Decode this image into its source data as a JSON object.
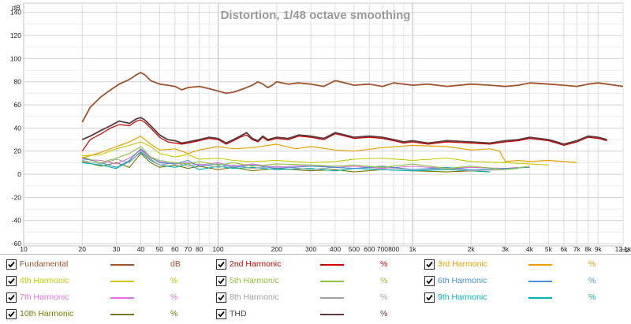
{
  "chart_data": {
    "type": "line",
    "title": "Distortion, 1/48 octave smoothing",
    "x_unit_label": "Hz",
    "y_unit_label": "dB",
    "x_scale": "log",
    "xlim": [
      10,
      12100
    ],
    "ylim": [
      -62,
      148
    ],
    "grid": true,
    "legend_placement": "bottom",
    "x_ticks": [
      {
        "v": 10,
        "label": "10"
      },
      {
        "v": 20,
        "label": "20"
      },
      {
        "v": 30,
        "label": "30"
      },
      {
        "v": 40,
        "label": "40"
      },
      {
        "v": 50,
        "label": "50"
      },
      {
        "v": 60,
        "label": "60"
      },
      {
        "v": 70,
        "label": "70"
      },
      {
        "v": 80,
        "label": "80"
      },
      {
        "v": 100,
        "label": "100"
      },
      {
        "v": 200,
        "label": "200"
      },
      {
        "v": 300,
        "label": "300"
      },
      {
        "v": 400,
        "label": "400"
      },
      {
        "v": 500,
        "label": "500"
      },
      {
        "v": 600,
        "label": "600"
      },
      {
        "v": 700,
        "label": "700"
      },
      {
        "v": 800,
        "label": "800"
      },
      {
        "v": 1000,
        "label": "1k"
      },
      {
        "v": 2000,
        "label": "2k"
      },
      {
        "v": 3000,
        "label": "3k"
      },
      {
        "v": 4000,
        "label": "4k"
      },
      {
        "v": 5000,
        "label": "5k"
      },
      {
        "v": 6000,
        "label": "6k"
      },
      {
        "v": 7000,
        "label": "7k"
      },
      {
        "v": 8000,
        "label": "8k"
      },
      {
        "v": 9000,
        "label": "9k"
      },
      {
        "v": 12100,
        "label": "12.1k"
      }
    ],
    "y_ticks": [
      {
        "v": 140,
        "label": "140"
      },
      {
        "v": 120,
        "label": "120"
      },
      {
        "v": 100,
        "label": "100"
      },
      {
        "v": 80,
        "label": "80"
      },
      {
        "v": 60,
        "label": "60"
      },
      {
        "v": 40,
        "label": "40"
      },
      {
        "v": 20,
        "label": "20"
      },
      {
        "v": 0,
        "label": "0"
      },
      {
        "v": -20,
        "label": "-20"
      },
      {
        "v": -40,
        "label": "-40"
      },
      {
        "v": -60,
        "label": "-60"
      }
    ],
    "series": [
      {
        "name": "Fundamental",
        "unit": "dB",
        "color": "#a0522d",
        "width": 1.8,
        "x": [
          20,
          22,
          25,
          28,
          31,
          35,
          38,
          40,
          42,
          45,
          50,
          55,
          60,
          65,
          70,
          80,
          90,
          100,
          110,
          120,
          130,
          140,
          150,
          160,
          170,
          180,
          190,
          200,
          230,
          260,
          300,
          350,
          400,
          450,
          500,
          600,
          700,
          800,
          900,
          1000,
          1200,
          1500,
          2000,
          2500,
          3000,
          3500,
          4000,
          5000,
          6000,
          7000,
          8000,
          9000,
          10000,
          12100
        ],
        "y": [
          45,
          58,
          67,
          73,
          78,
          82,
          86,
          88,
          86,
          81,
          78,
          77,
          76,
          73,
          75,
          76,
          74,
          72,
          70,
          71,
          73,
          75,
          77,
          80,
          78,
          75,
          77,
          80,
          78,
          79,
          78,
          76,
          81,
          79,
          77,
          78,
          76,
          79,
          78,
          77,
          78,
          76,
          78,
          77,
          76,
          77,
          79,
          78,
          77,
          76,
          78,
          79,
          78,
          76
        ]
      },
      {
        "name": "THD",
        "unit": "%",
        "color": "#5a3a3a",
        "width": 1.8,
        "x": [
          20,
          22,
          25,
          28,
          31,
          35,
          38,
          40,
          42,
          45,
          50,
          55,
          60,
          65,
          70,
          80,
          90,
          100,
          110,
          120,
          130,
          140,
          150,
          160,
          170,
          180,
          190,
          200,
          230,
          260,
          300,
          350,
          400,
          450,
          500,
          600,
          700,
          800,
          900,
          1000,
          1200,
          1500,
          2000,
          2500,
          3000,
          3500,
          4000,
          5000,
          5500,
          6000,
          7000,
          8000,
          9000,
          10000
        ],
        "y": [
          30,
          33,
          38,
          42,
          46,
          44,
          48,
          49,
          47,
          42,
          34,
          30,
          29,
          27,
          28,
          30,
          32,
          31,
          27,
          30,
          33,
          36,
          31,
          29,
          33,
          30,
          31,
          32,
          31,
          34,
          33,
          31,
          36,
          34,
          32,
          33,
          32,
          30,
          28,
          29,
          27,
          29,
          28,
          27,
          29,
          30,
          32,
          30,
          28,
          26,
          29,
          33,
          32,
          30
        ]
      },
      {
        "name": "2nd Harmonic",
        "unit": "%",
        "color": "#cc0000",
        "width": 1.2,
        "x": [
          20,
          22,
          25,
          28,
          31,
          35,
          38,
          40,
          42,
          45,
          50,
          55,
          60,
          65,
          70,
          80,
          90,
          100,
          110,
          120,
          130,
          140,
          150,
          160,
          170,
          180,
          190,
          200,
          230,
          260,
          300,
          350,
          400,
          450,
          500,
          600,
          700,
          800,
          900,
          1000,
          1200,
          1500,
          2000,
          2500,
          3000,
          3500,
          4000,
          5000,
          5500,
          6000,
          7000,
          8000,
          9000,
          10000
        ],
        "y": [
          20,
          30,
          35,
          40,
          43,
          42,
          46,
          47,
          45,
          40,
          32,
          28,
          27,
          26,
          27,
          29,
          31,
          30,
          26,
          29,
          32,
          34,
          30,
          28,
          32,
          29,
          30,
          31,
          30,
          33,
          32,
          30,
          35,
          33,
          31,
          32,
          31,
          29,
          27,
          28,
          26,
          28,
          27,
          26,
          28,
          29,
          31,
          29,
          27,
          25,
          28,
          32,
          31,
          29
        ]
      },
      {
        "name": "3rd Harmonic",
        "unit": "%",
        "color": "#e8a000",
        "width": 1.2,
        "x": [
          20,
          25,
          30,
          35,
          40,
          45,
          50,
          60,
          70,
          80,
          100,
          120,
          150,
          200,
          250,
          300,
          400,
          500,
          700,
          1000,
          1500,
          2000,
          2500,
          2800,
          3000,
          3500,
          4000,
          5000,
          6000,
          7000
        ],
        "y": [
          14,
          19,
          24,
          28,
          33,
          26,
          21,
          22,
          18,
          21,
          24,
          22,
          23,
          26,
          22,
          24,
          21,
          20,
          23,
          25,
          24,
          21,
          22,
          20,
          11,
          12,
          11,
          12,
          11,
          10
        ]
      },
      {
        "name": "4th Harmonic",
        "unit": "%",
        "color": "#c8c800",
        "width": 1.1,
        "x": [
          20,
          25,
          30,
          35,
          40,
          45,
          50,
          60,
          70,
          80,
          100,
          120,
          150,
          200,
          300,
          400,
          500,
          700,
          1000,
          1500,
          2000,
          3000,
          4000,
          5000
        ],
        "y": [
          16,
          17,
          22,
          25,
          28,
          24,
          18,
          15,
          17,
          13,
          14,
          12,
          11,
          12,
          10,
          11,
          13,
          14,
          12,
          14,
          11,
          10,
          9,
          8
        ]
      },
      {
        "name": "5th Harmonic",
        "unit": "%",
        "color": "#8fc43a",
        "width": 1.1,
        "x": [
          20,
          25,
          30,
          35,
          40,
          45,
          50,
          60,
          70,
          80,
          100,
          120,
          150,
          200,
          300,
          400,
          500,
          700,
          1000,
          1500,
          2000,
          3000,
          4000
        ],
        "y": [
          15,
          10,
          14,
          18,
          24,
          15,
          12,
          10,
          9,
          11,
          8,
          10,
          7,
          9,
          8,
          7,
          8,
          6,
          9,
          5,
          7,
          4,
          7
        ]
      },
      {
        "name": "6th Harmonic",
        "unit": "%",
        "color": "#4a90d9",
        "width": 1.1,
        "x": [
          20,
          25,
          30,
          35,
          40,
          45,
          50,
          60,
          70,
          80,
          100,
          120,
          150,
          200,
          300,
          400,
          500,
          700,
          1000,
          1500,
          2000,
          3000,
          4000
        ],
        "y": [
          14,
          10,
          6,
          12,
          22,
          15,
          10,
          9,
          12,
          7,
          9,
          6,
          8,
          5,
          7,
          6,
          5,
          7,
          4,
          6,
          4,
          5,
          6
        ]
      },
      {
        "name": "7th Harmonic",
        "unit": "%",
        "color": "#e070e0",
        "width": 1.1,
        "x": [
          20,
          25,
          30,
          35,
          40,
          45,
          50,
          60,
          70,
          80,
          100,
          120,
          150,
          200,
          300,
          400,
          500,
          700,
          1000,
          1500,
          2000,
          3000,
          3500
        ],
        "y": [
          13,
          12,
          9,
          14,
          21,
          14,
          11,
          9,
          10,
          8,
          10,
          7,
          9,
          6,
          8,
          6,
          7,
          5,
          7,
          5,
          6,
          5,
          6
        ]
      },
      {
        "name": "8th Harmonic",
        "unit": "%",
        "color": "#a0a0a0",
        "width": 1.1,
        "x": [
          20,
          25,
          30,
          35,
          40,
          45,
          50,
          60,
          70,
          80,
          100,
          120,
          150,
          200,
          300,
          400,
          500,
          700,
          1000,
          1500,
          2000,
          3000,
          3500
        ],
        "y": [
          12,
          9,
          13,
          10,
          20,
          13,
          8,
          10,
          7,
          9,
          6,
          8,
          5,
          7,
          4,
          6,
          5,
          6,
          4,
          5,
          3,
          4,
          5
        ]
      },
      {
        "name": "9th Harmonic",
        "unit": "%",
        "color": "#00b3b3",
        "width": 1.1,
        "x": [
          20,
          25,
          30,
          35,
          40,
          45,
          50,
          60,
          70,
          80,
          100,
          120,
          150,
          200,
          300,
          400,
          500,
          700,
          1000,
          1500,
          2000,
          2500
        ],
        "y": [
          10,
          8,
          5,
          11,
          19,
          12,
          8,
          6,
          9,
          4,
          7,
          5,
          6,
          4,
          5,
          3,
          5,
          4,
          3,
          4,
          3,
          2
        ]
      },
      {
        "name": "10th Harmonic",
        "unit": "%",
        "color": "#7a7a00",
        "width": 1.1,
        "x": [
          20,
          25,
          30,
          35,
          40,
          45,
          50,
          60,
          70,
          80,
          100,
          120,
          150,
          200,
          300,
          400,
          500,
          700,
          1000,
          1500,
          2000,
          2500
        ],
        "y": [
          11,
          7,
          10,
          6,
          18,
          10,
          6,
          8,
          5,
          7,
          4,
          6,
          3,
          5,
          3,
          4,
          2,
          4,
          3,
          2,
          3,
          2
        ]
      }
    ]
  },
  "legend": {
    "rows": [
      [
        {
          "label": "Fundamental",
          "unit": "dB",
          "color": "#a0522d",
          "checked": true
        },
        {
          "label": "2nd Harmonic",
          "unit": "%",
          "color": "#cc0000",
          "checked": true
        },
        {
          "label": "3rd Harmonic",
          "unit": "%",
          "color": "#e8a000",
          "checked": true
        }
      ],
      [
        {
          "label": "4th Harmonic",
          "unit": "%",
          "color": "#c8c800",
          "checked": true
        },
        {
          "label": "5th Harmonic",
          "unit": "%",
          "color": "#8fc43a",
          "checked": true
        },
        {
          "label": "6th Harmonic",
          "unit": "%",
          "color": "#4a90d9",
          "checked": true
        }
      ],
      [
        {
          "label": "7th Harmonic",
          "unit": "%",
          "color": "#e070e0",
          "checked": true
        },
        {
          "label": "8th Harmonic",
          "unit": "%",
          "color": "#a0a0a0",
          "checked": true
        },
        {
          "label": "9th Harmonic",
          "unit": "%",
          "color": "#00b3b3",
          "checked": true
        }
      ],
      [
        {
          "label": "10th Harmonic",
          "unit": "%",
          "color": "#7a7a00",
          "checked": true
        },
        {
          "label": "THD",
          "unit": "%",
          "color": "#5a3a3a",
          "checked": true
        }
      ]
    ]
  }
}
